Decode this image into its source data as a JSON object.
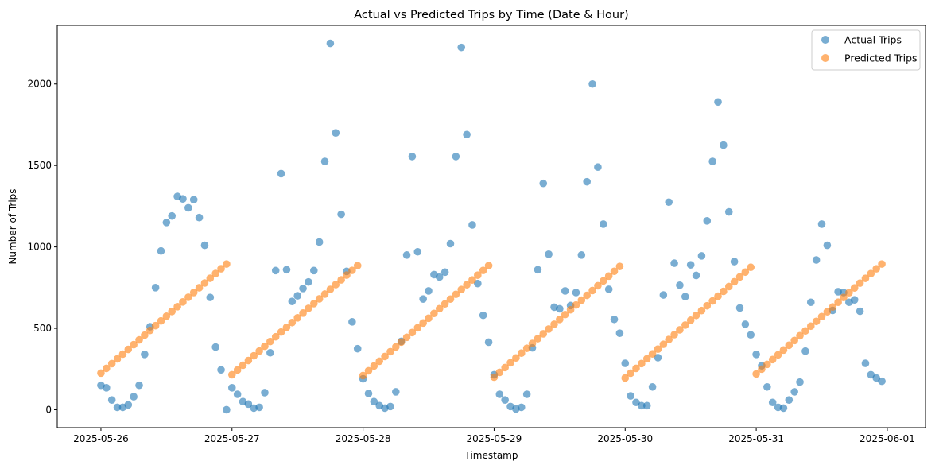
{
  "chart_data": {
    "type": "scatter",
    "title": "Actual vs Predicted Trips by Time (Date & Hour)",
    "xlabel": "Timestamp",
    "ylabel": "Number of Trips",
    "x_start": "2025-05-26 00:00",
    "x_step_hours": 1,
    "xlim": [
      "2025-05-25 16:00",
      "2025-06-01 07:00"
    ],
    "ylim": [
      -110,
      2360
    ],
    "x_ticks": [
      "2025-05-26",
      "2025-05-27",
      "2025-05-28",
      "2025-05-29",
      "2025-05-30",
      "2025-05-31",
      "2025-06-01"
    ],
    "y_ticks": [
      0,
      500,
      1000,
      1500,
      2000
    ],
    "grid": false,
    "legend_position": "top-right",
    "series": [
      {
        "name": "Actual Trips",
        "color": "#1f77b4",
        "values": [
          150,
          135,
          60,
          15,
          15,
          30,
          80,
          150,
          340,
          510,
          750,
          975,
          1150,
          1190,
          1310,
          1295,
          1240,
          1290,
          1180,
          1010,
          690,
          385,
          245,
          0,
          135,
          95,
          50,
          35,
          10,
          15,
          105,
          350,
          855,
          1450,
          860,
          665,
          700,
          745,
          785,
          855,
          1030,
          1525,
          2250,
          1700,
          1200,
          850,
          540,
          375,
          190,
          100,
          50,
          25,
          10,
          20,
          110,
          420,
          950,
          1555,
          970,
          680,
          730,
          830,
          815,
          845,
          1020,
          1555,
          2225,
          1690,
          1135,
          775,
          580,
          415,
          215,
          95,
          60,
          20,
          5,
          15,
          95,
          380,
          860,
          1390,
          955,
          630,
          620,
          730,
          640,
          720,
          950,
          1400,
          2000,
          1490,
          1140,
          740,
          555,
          470,
          285,
          85,
          45,
          25,
          25,
          140,
          320,
          705,
          1275,
          900,
          765,
          695,
          890,
          825,
          945,
          1160,
          1525,
          1890,
          1625,
          1215,
          910,
          625,
          525,
          460,
          340,
          270,
          140,
          45,
          15,
          10,
          60,
          110,
          170,
          360,
          660,
          920,
          1140,
          1010,
          610,
          725,
          720,
          660,
          675,
          605,
          285,
          215,
          195,
          175
        ]
      },
      {
        "name": "Predicted Trips",
        "color": "#ff7f0e",
        "daily_start": [
          225,
          215,
          210,
          200,
          195,
          220
        ],
        "daily_end": [
          895,
          885,
          885,
          880,
          875,
          895
        ]
      }
    ]
  }
}
